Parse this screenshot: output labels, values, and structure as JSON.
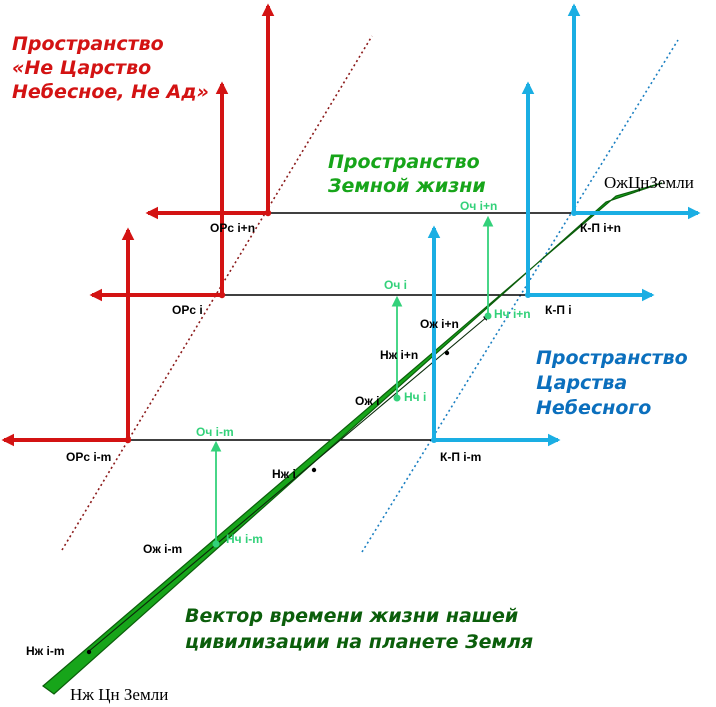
{
  "colors": {
    "red": "#d31313",
    "blue": "#1aaee3",
    "green": "#17a51a",
    "dark_green": "#0b5e0b",
    "light_green": "#33d17a",
    "title_blue": "#0b6fbd",
    "black": "#000000"
  },
  "titles": {
    "not_heaven_not_hell": [
      "Пространство",
      "«Не Царство",
      "Небесное, Не Ад»"
    ],
    "earth_life": [
      "Пространство",
      "Земной жизни"
    ],
    "heaven": [
      "Пространство",
      "Царства",
      "Небесного"
    ],
    "time_vector": [
      "Вектор времени жизни нашей",
      "цивилизации на планете Земля"
    ]
  },
  "vector_end_labels": {
    "top": "ОжЦнЗемли",
    "bottom": "Нж Цн Земли"
  },
  "levels": [
    {
      "id": "i+n",
      "left_label": "ОРс i+n",
      "right_label": "К-П i+n",
      "oc_label": "Оч i+n",
      "nc_label": "Нч i+n",
      "oz_label": "Ож i+n",
      "nz_label": "Нж i+n"
    },
    {
      "id": "i",
      "left_label": "ОРс i",
      "right_label": "К-П i",
      "oc_label": "Оч i",
      "nc_label": "Нч i",
      "oz_label": "Ож i",
      "nz_label": "Нж i"
    },
    {
      "id": "i-m",
      "left_label": "ОРс i-m",
      "right_label": "К-П i-m",
      "oc_label": "Оч i-m",
      "nc_label": "Нч i-m",
      "oz_label": "Ож i-m",
      "nz_label": "Нж i-m"
    }
  ]
}
